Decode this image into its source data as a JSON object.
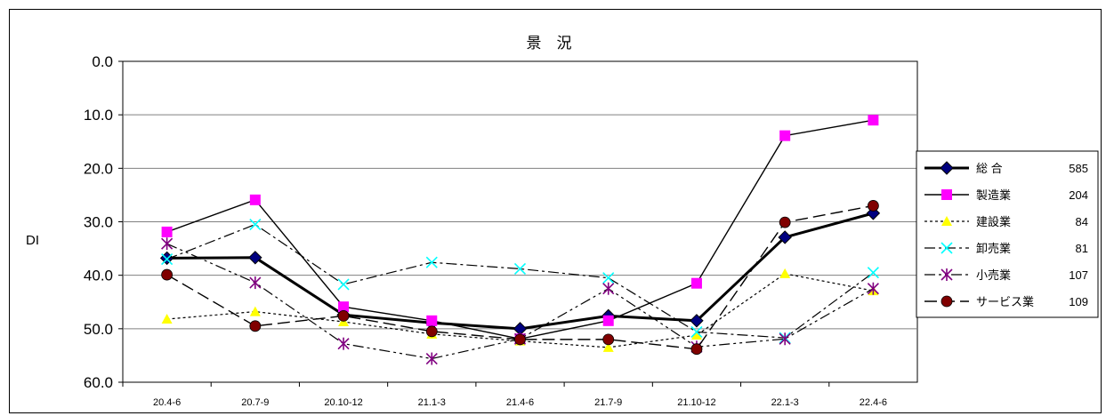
{
  "chart_data": {
    "type": "line",
    "title": "景　況",
    "xlabel": "",
    "ylabel": "DI",
    "ylim": [
      0,
      60
    ],
    "y_inverted": true,
    "y_ticks": [
      "0.0",
      "10.0",
      "20.0",
      "30.0",
      "40.0",
      "50.0",
      "60.0"
    ],
    "categories": [
      "20.4-6",
      "20.7-9",
      "20.10-12",
      "21.1-3",
      "21.4-6",
      "21.7-9",
      "21.10-12",
      "22.1-3",
      "22.4-6"
    ],
    "grid": "horizontal",
    "legend_position": "right",
    "series": [
      {
        "name": "総 合",
        "count": "585",
        "color": "#00007f",
        "marker": "diamond",
        "dash": "solid-bold",
        "values": [
          36.8,
          36.7,
          47.4,
          48.9,
          50.0,
          47.6,
          48.5,
          32.9,
          28.4
        ]
      },
      {
        "name": "製造業",
        "count": "204",
        "color": "#ff00ff",
        "marker": "square",
        "dash": "solid",
        "values": [
          31.9,
          25.9,
          45.9,
          48.5,
          51.9,
          48.5,
          41.5,
          13.9,
          11.0
        ]
      },
      {
        "name": "建設業",
        "count": "84",
        "color": "#ffff00",
        "marker": "triangle",
        "dash": "dotted",
        "values": [
          48.2,
          46.8,
          48.7,
          51.0,
          52.3,
          53.5,
          51.2,
          39.7,
          42.9
        ]
      },
      {
        "name": "卸売業",
        "count": "81",
        "color": "#00ffff",
        "marker": "x",
        "dash": "dashdot",
        "values": [
          37.0,
          30.5,
          41.7,
          37.6,
          38.8,
          40.5,
          50.6,
          51.7,
          39.5
        ]
      },
      {
        "name": "小売業",
        "count": "107",
        "color": "#800080",
        "marker": "star",
        "dash": "dashdotdot",
        "values": [
          34.1,
          41.4,
          52.8,
          55.6,
          51.9,
          42.5,
          53.4,
          51.9,
          42.5
        ]
      },
      {
        "name": "サービス業",
        "count": "109",
        "color": "#800000",
        "marker": "circle",
        "dash": "longdash",
        "values": [
          39.9,
          49.5,
          47.6,
          50.5,
          52.0,
          52.0,
          53.8,
          30.1,
          27.0
        ]
      }
    ]
  }
}
